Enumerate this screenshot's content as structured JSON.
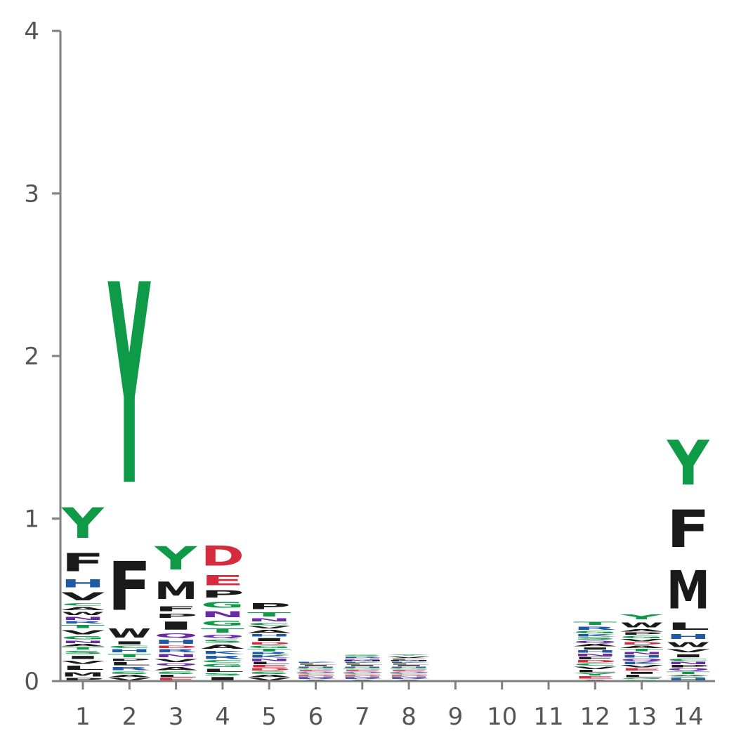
{
  "chart_data": {
    "type": "logo",
    "title": "",
    "xlabel": "",
    "ylabel": "",
    "ylim": [
      0,
      4
    ],
    "yticks": [
      "0",
      "1",
      "2",
      "3",
      "4"
    ],
    "positions": [
      "1",
      "2",
      "3",
      "4",
      "5",
      "6",
      "7",
      "8",
      "9",
      "10",
      "11",
      "12",
      "13",
      "14"
    ],
    "grid": false,
    "legend": "none",
    "colors": {
      "hydrophobic": "#1a1a1a",
      "polar": "#0f9a48",
      "acidic": "#d62a3d",
      "basic": "#1f5aa6",
      "amide": "#6a2aa8",
      "axis": "#808080"
    },
    "letter_colors": {
      "A": "#1a1a1a",
      "C": "#0f9a48",
      "D": "#d62a3d",
      "E": "#d62a3d",
      "F": "#1a1a1a",
      "G": "#0f9a48",
      "H": "#1f5aa6",
      "I": "#1a1a1a",
      "K": "#1f5aa6",
      "L": "#1a1a1a",
      "M": "#1a1a1a",
      "N": "#6a2aa8",
      "P": "#1a1a1a",
      "Q": "#6a2aa8",
      "R": "#1f5aa6",
      "S": "#0f9a48",
      "T": "#0f9a48",
      "V": "#1a1a1a",
      "W": "#1a1a1a",
      "Y": "#0f9a48"
    },
    "stacks": [
      [
        [
          "P",
          0.02
        ],
        [
          "M",
          0.04
        ],
        [
          "L",
          0.04
        ],
        [
          "V",
          0.03
        ],
        [
          "I",
          0.03
        ],
        [
          "S",
          0.03
        ],
        [
          "T",
          0.02
        ],
        [
          "A",
          0.02
        ],
        [
          "N",
          0.02
        ],
        [
          "G",
          0.03
        ],
        [
          "V",
          0.04
        ],
        [
          "T",
          0.03
        ],
        [
          "R",
          0.02
        ],
        [
          "N",
          0.03
        ],
        [
          "W",
          0.03
        ],
        [
          "A",
          0.03
        ],
        [
          "C",
          0.02
        ],
        [
          "V",
          0.08
        ],
        [
          "H",
          0.08
        ],
        [
          "F",
          0.18
        ],
        [
          "Y",
          0.3
        ]
      ],
      [
        [
          "V",
          0.02
        ],
        [
          "A",
          0.02
        ],
        [
          "S",
          0.02
        ],
        [
          "R",
          0.03
        ],
        [
          "L",
          0.03
        ],
        [
          "P",
          0.02
        ],
        [
          "T",
          0.03
        ],
        [
          "H",
          0.03
        ],
        [
          "C",
          0.02
        ],
        [
          "I",
          0.03
        ],
        [
          "W",
          0.09
        ],
        [
          "F",
          0.48
        ],
        [
          "Y",
          1.98
        ]
      ],
      [
        [
          "E",
          0.02
        ],
        [
          "L",
          0.02
        ],
        [
          "S",
          0.02
        ],
        [
          "A",
          0.03
        ],
        [
          "Q",
          0.02
        ],
        [
          "V",
          0.03
        ],
        [
          "N",
          0.03
        ],
        [
          "R",
          0.03
        ],
        [
          "D",
          0.02
        ],
        [
          "H",
          0.04
        ],
        [
          "Q",
          0.04
        ],
        [
          "I",
          0.08
        ],
        [
          "P",
          0.04
        ],
        [
          "F",
          0.05
        ],
        [
          "M",
          0.17
        ],
        [
          "Y",
          0.23
        ]
      ],
      [
        [
          "I",
          0.03
        ],
        [
          "S",
          0.02
        ],
        [
          "L",
          0.03
        ],
        [
          "G",
          0.03
        ],
        [
          "C",
          0.02
        ],
        [
          "R",
          0.03
        ],
        [
          "K",
          0.03
        ],
        [
          "A",
          0.04
        ],
        [
          "S",
          0.03
        ],
        [
          "Q",
          0.03
        ],
        [
          "T",
          0.04
        ],
        [
          "G",
          0.05
        ],
        [
          "N",
          0.06
        ],
        [
          "G",
          0.06
        ],
        [
          "P",
          0.07
        ],
        [
          "E",
          0.1
        ],
        [
          "D",
          0.2
        ]
      ],
      [
        [
          "V",
          0.02
        ],
        [
          "A",
          0.02
        ],
        [
          "S",
          0.02
        ],
        [
          "D",
          0.02
        ],
        [
          "E",
          0.02
        ],
        [
          "L",
          0.02
        ],
        [
          "N",
          0.02
        ],
        [
          "K",
          0.02
        ],
        [
          "R",
          0.02
        ],
        [
          "T",
          0.02
        ],
        [
          "G",
          0.02
        ],
        [
          "D",
          0.02
        ],
        [
          "I",
          0.03
        ],
        [
          "H",
          0.02
        ],
        [
          "A",
          0.03
        ],
        [
          "V",
          0.02
        ],
        [
          "C",
          0.02
        ],
        [
          "N",
          0.03
        ],
        [
          "T",
          0.04
        ],
        [
          "P",
          0.06
        ]
      ],
      [
        [
          "A",
          0.01
        ],
        [
          "R",
          0.01
        ],
        [
          "N",
          0.01
        ],
        [
          "D",
          0.01
        ],
        [
          "C",
          0.01
        ],
        [
          "Q",
          0.01
        ],
        [
          "E",
          0.01
        ],
        [
          "G",
          0.01
        ],
        [
          "H",
          0.01
        ],
        [
          "I",
          0.01
        ],
        [
          "L",
          0.01
        ],
        [
          "K",
          0.01
        ]
      ],
      [
        [
          "A",
          0.01
        ],
        [
          "R",
          0.01
        ],
        [
          "N",
          0.01
        ],
        [
          "D",
          0.01
        ],
        [
          "C",
          0.01
        ],
        [
          "Q",
          0.01
        ],
        [
          "E",
          0.01
        ],
        [
          "G",
          0.01
        ],
        [
          "H",
          0.01
        ],
        [
          "I",
          0.01
        ],
        [
          "L",
          0.01
        ],
        [
          "K",
          0.01
        ],
        [
          "M",
          0.01
        ],
        [
          "N",
          0.01
        ],
        [
          "R",
          0.01
        ],
        [
          "S",
          0.015
        ]
      ],
      [
        [
          "A",
          0.01
        ],
        [
          "R",
          0.01
        ],
        [
          "N",
          0.01
        ],
        [
          "D",
          0.01
        ],
        [
          "C",
          0.01
        ],
        [
          "Q",
          0.01
        ],
        [
          "E",
          0.01
        ],
        [
          "G",
          0.01
        ],
        [
          "H",
          0.01
        ],
        [
          "I",
          0.01
        ],
        [
          "L",
          0.01
        ],
        [
          "K",
          0.01
        ],
        [
          "M",
          0.01
        ],
        [
          "F",
          0.01
        ],
        [
          "V",
          0.015
        ],
        [
          "Y",
          0.01
        ]
      ],
      [],
      [],
      [],
      [
        [
          "A",
          0.01
        ],
        [
          "E",
          0.02
        ],
        [
          "Y",
          0.02
        ],
        [
          "L",
          0.02
        ],
        [
          "V",
          0.02
        ],
        [
          "C",
          0.02
        ],
        [
          "D",
          0.02
        ],
        [
          "F",
          0.02
        ],
        [
          "N",
          0.02
        ],
        [
          "H",
          0.02
        ],
        [
          "I",
          0.02
        ],
        [
          "A",
          0.02
        ],
        [
          "Q",
          0.02
        ],
        [
          "S",
          0.02
        ],
        [
          "K",
          0.02
        ],
        [
          "G",
          0.02
        ],
        [
          "R",
          0.03
        ],
        [
          "T",
          0.03
        ]
      ],
      [
        [
          "S",
          0.01
        ],
        [
          "G",
          0.01
        ],
        [
          "L",
          0.02
        ],
        [
          "I",
          0.02
        ],
        [
          "E",
          0.02
        ],
        [
          "V",
          0.02
        ],
        [
          "K",
          0.02
        ],
        [
          "Q",
          0.02
        ],
        [
          "H",
          0.02
        ],
        [
          "N",
          0.02
        ],
        [
          "T",
          0.02
        ],
        [
          "A",
          0.02
        ],
        [
          "D",
          0.02
        ],
        [
          "V",
          0.02
        ],
        [
          "G",
          0.02
        ],
        [
          "P",
          0.02
        ],
        [
          "A",
          0.02
        ],
        [
          "W",
          0.05
        ],
        [
          "Y",
          0.05
        ]
      ],
      [
        [
          "H",
          0.02
        ],
        [
          "S",
          0.01
        ],
        [
          "A",
          0.01
        ],
        [
          "T",
          0.02
        ],
        [
          "Q",
          0.02
        ],
        [
          "P",
          0.02
        ],
        [
          "N",
          0.02
        ],
        [
          "C",
          0.02
        ],
        [
          "I",
          0.03
        ],
        [
          "V",
          0.03
        ],
        [
          "W",
          0.05
        ],
        [
          "H",
          0.05
        ],
        [
          "L",
          0.07
        ],
        [
          "M",
          0.38
        ],
        [
          "F",
          0.37
        ],
        [
          "Y",
          0.44
        ]
      ]
    ]
  }
}
